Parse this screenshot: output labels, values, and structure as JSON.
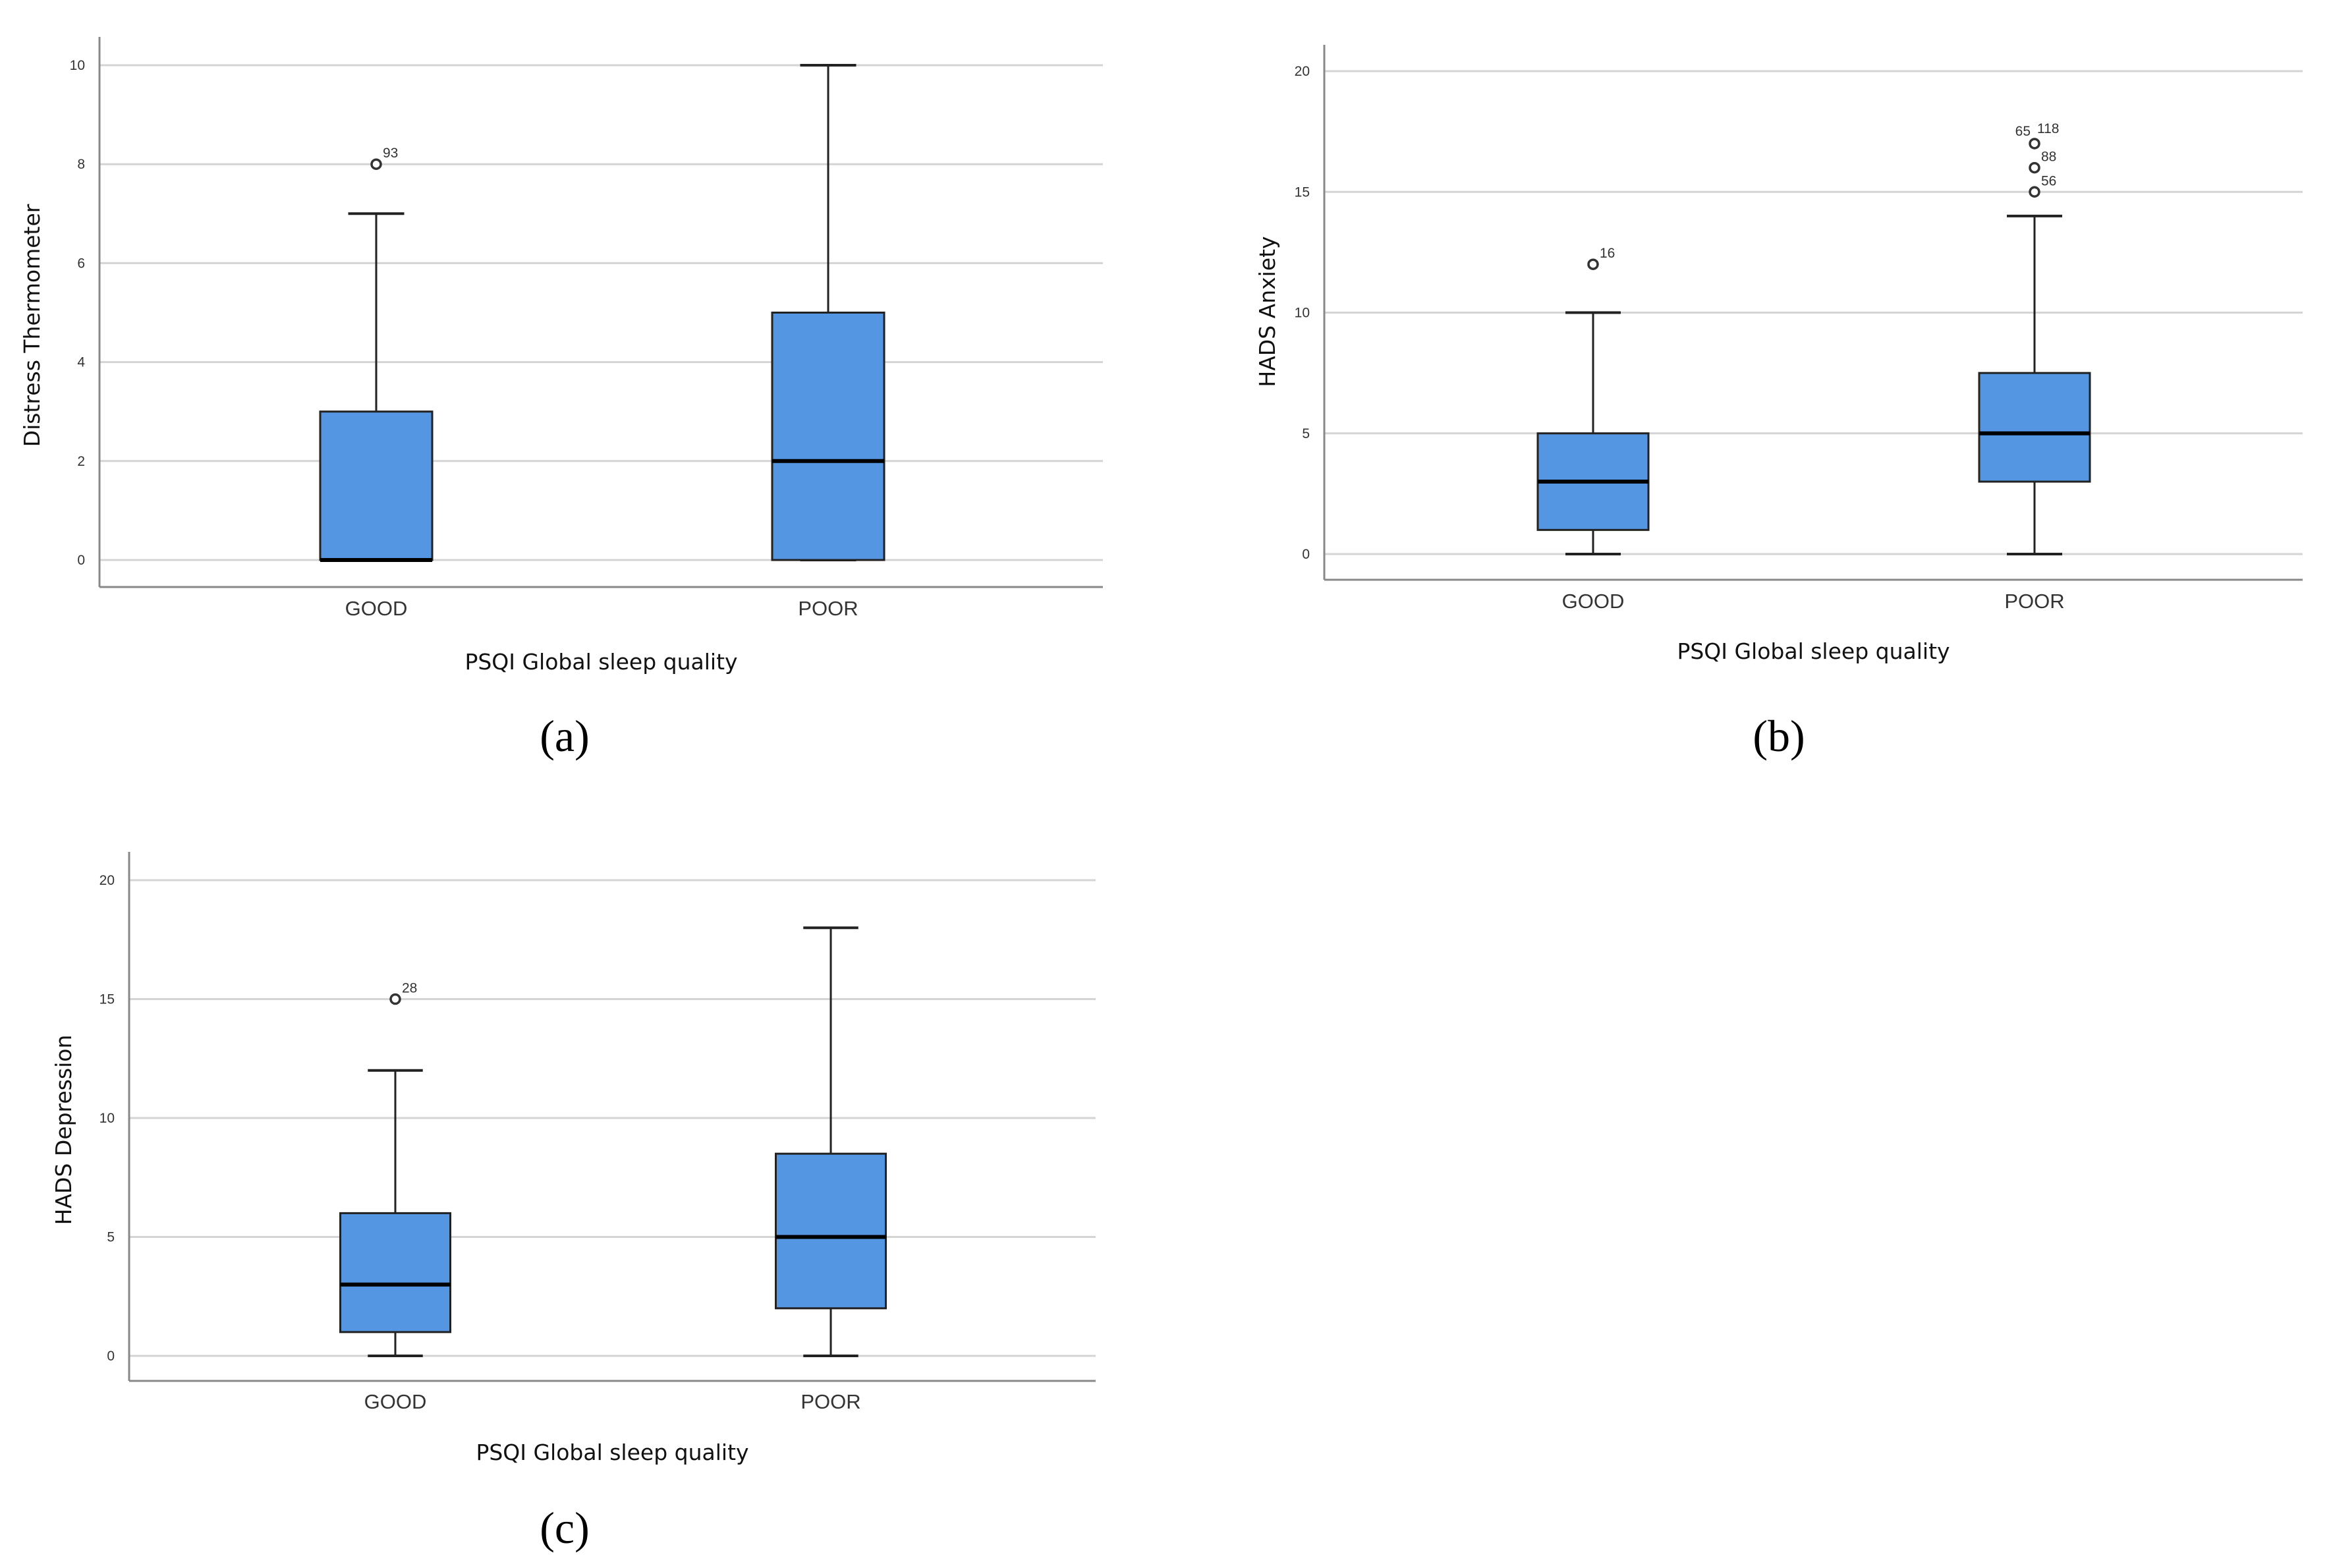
{
  "colors": {
    "box_fill": "#5596E3",
    "box_stroke": "#222222",
    "grid": "#D4D4D4",
    "axis": "#888888"
  },
  "chart_data": [
    {
      "type": "boxplot",
      "panel_label": "(a)",
      "xlabel": "PSQI Global sleep quality",
      "ylabel": "Distress Thermometer",
      "ylim": [
        -0.5,
        10.5
      ],
      "yticks": [
        0,
        2,
        4,
        6,
        8,
        10
      ],
      "grid": true,
      "categories": [
        "GOOD",
        "POOR"
      ],
      "boxes": [
        {
          "min": 0,
          "q1": 0,
          "median": 0,
          "q3": 3,
          "max": 7,
          "outliers": [
            {
              "value": 8,
              "labels": [
                "93"
              ]
            }
          ]
        },
        {
          "min": 0,
          "q1": 0,
          "median": 2,
          "q3": 5,
          "max": 10,
          "outliers": []
        }
      ]
    },
    {
      "type": "boxplot",
      "panel_label": "(b)",
      "xlabel": "PSQI Global sleep quality",
      "ylabel": "HADS Anxiety",
      "ylim": [
        -1,
        21
      ],
      "yticks": [
        0,
        5,
        10,
        15,
        20
      ],
      "grid": true,
      "categories": [
        "GOOD",
        "POOR"
      ],
      "boxes": [
        {
          "min": 0,
          "q1": 1,
          "median": 3,
          "q3": 5,
          "max": 10,
          "outliers": [
            {
              "value": 12,
              "labels": [
                "16"
              ]
            }
          ]
        },
        {
          "min": 0,
          "q1": 3,
          "median": 5,
          "q3": 7.5,
          "max": 14,
          "outliers": [
            {
              "value": 15,
              "labels": [
                "56"
              ]
            },
            {
              "value": 16,
              "labels": [
                "88"
              ]
            },
            {
              "value": 17,
              "labels": [
                "65",
                "118"
              ]
            }
          ]
        }
      ]
    },
    {
      "type": "boxplot",
      "panel_label": "(c)",
      "xlabel": "PSQI Global sleep quality",
      "ylabel": "HADS Depression",
      "ylim": [
        -1,
        21
      ],
      "yticks": [
        0,
        5,
        10,
        15,
        20
      ],
      "grid": true,
      "categories": [
        "GOOD",
        "POOR"
      ],
      "boxes": [
        {
          "min": 0,
          "q1": 1,
          "median": 3,
          "q3": 6,
          "max": 12,
          "outliers": [
            {
              "value": 15,
              "labels": [
                "28"
              ]
            }
          ]
        },
        {
          "min": 0,
          "q1": 2,
          "median": 5,
          "q3": 8.5,
          "max": 18,
          "outliers": []
        }
      ]
    }
  ]
}
